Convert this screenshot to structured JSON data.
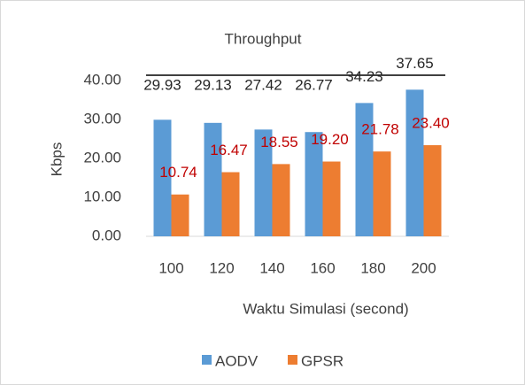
{
  "chart_data": {
    "type": "bar",
    "title": "Throughput",
    "x_label": "Waktu Simulasi (second)",
    "y_label": "Kbps",
    "categories": [
      "100",
      "120",
      "140",
      "160",
      "180",
      "200"
    ],
    "series": [
      {
        "name": "AODV",
        "color": "#5b9bd5",
        "values": [
          29.93,
          29.13,
          27.42,
          26.77,
          34.23,
          37.65
        ],
        "value_labels": [
          "29.93",
          "29.13",
          "27.42",
          "26.77",
          "34.23",
          "37.65"
        ],
        "label_color": "#262626"
      },
      {
        "name": "GPSR",
        "color": "#ed7d31",
        "values": [
          10.74,
          16.47,
          18.55,
          19.2,
          21.78,
          23.4
        ],
        "value_labels": [
          "10.74",
          "16.47",
          "18.55",
          "19.20",
          "21.78",
          "23.40"
        ],
        "label_color": "#c00000"
      }
    ],
    "ylim": [
      0,
      40
    ],
    "yticks": [
      {
        "value": 0,
        "label": "0.00"
      },
      {
        "value": 10,
        "label": "10.00"
      },
      {
        "value": 20,
        "label": "20.00"
      },
      {
        "value": 30,
        "label": "30.00"
      },
      {
        "value": 40,
        "label": "40.00"
      }
    ],
    "grid": false,
    "legend": "bottom"
  }
}
